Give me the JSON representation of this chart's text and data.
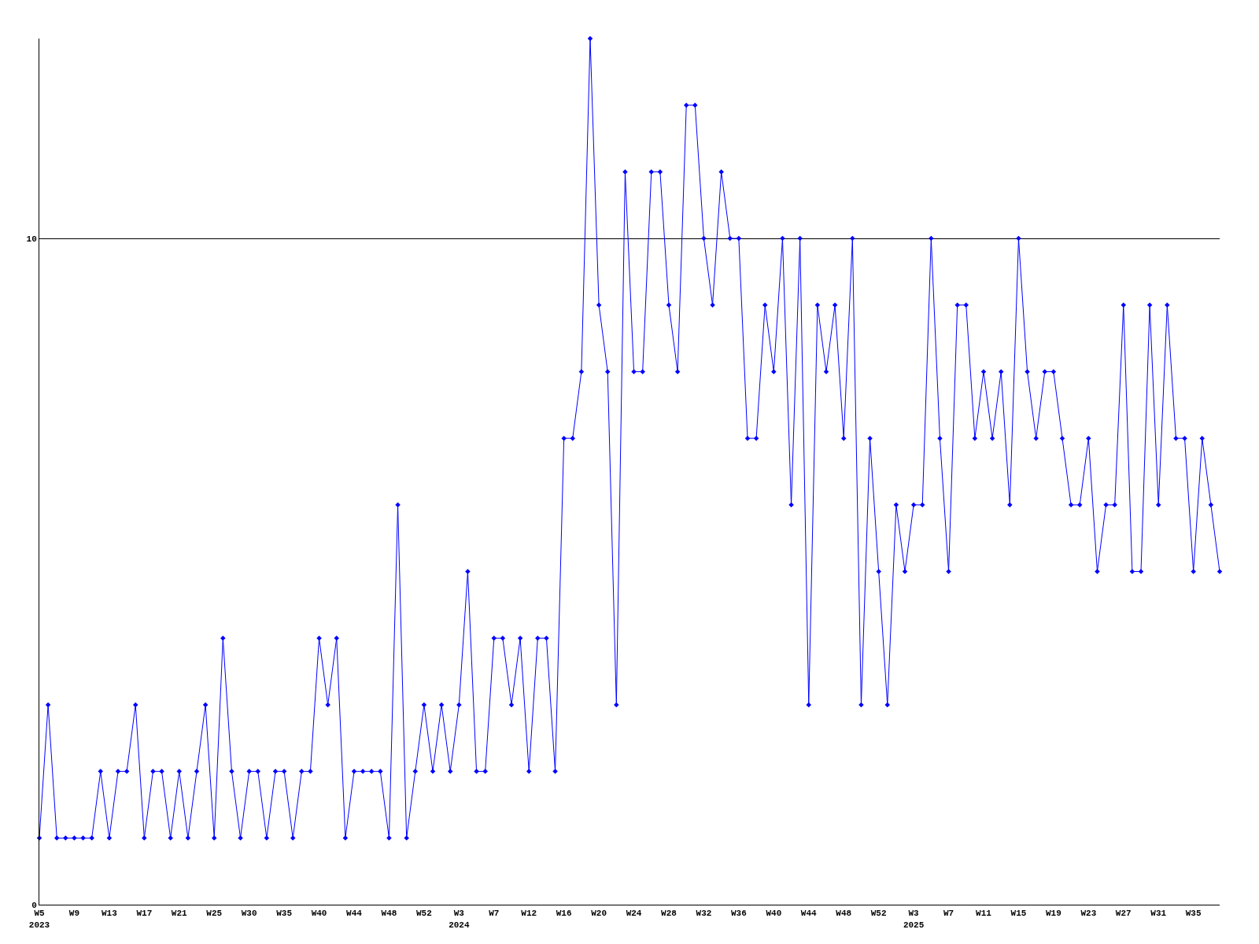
{
  "chart_data": {
    "type": "line",
    "categories": [
      "W5\n2023",
      null,
      null,
      null,
      "W9",
      null,
      null,
      null,
      "W13",
      null,
      null,
      null,
      "W17",
      null,
      null,
      null,
      "W21",
      null,
      null,
      null,
      "W25",
      null,
      null,
      null,
      "W30",
      null,
      null,
      null,
      "W35",
      null,
      null,
      null,
      "W40",
      null,
      null,
      null,
      "W44",
      null,
      null,
      null,
      "W48",
      null,
      null,
      null,
      "W52",
      null,
      null,
      null,
      "W3\n2024",
      null,
      null,
      null,
      "W7",
      null,
      null,
      null,
      "W12",
      null,
      null,
      null,
      "W16",
      null,
      null,
      null,
      "W20",
      null,
      null,
      null,
      "W24",
      null,
      null,
      null,
      "W28",
      null,
      null,
      null,
      "W32",
      null,
      null,
      null,
      "W36",
      null,
      null,
      null,
      "W40",
      null,
      null,
      null,
      "W44",
      null,
      null,
      null,
      "W48",
      null,
      null,
      null,
      "W52",
      null,
      null,
      null,
      "W3\n2025",
      null,
      null,
      null,
      "W7",
      null,
      null,
      null,
      "W11",
      null,
      null,
      null,
      "W15",
      null,
      null,
      null,
      "W19",
      null,
      null,
      null,
      "W23",
      null,
      null,
      null,
      "W27",
      null,
      null,
      null,
      "W31",
      null,
      null,
      null,
      "W35",
      null,
      null,
      null
    ],
    "series": [
      {
        "color": "#0000ff",
        "values": [
          1,
          3,
          1,
          1,
          1,
          1,
          1,
          2,
          1,
          2,
          2,
          3,
          1,
          2,
          2,
          1,
          2,
          1,
          2,
          3,
          1,
          4,
          2,
          1,
          2,
          2,
          1,
          2,
          2,
          1,
          2,
          2,
          4,
          3,
          4,
          1,
          2,
          2,
          2,
          2,
          1,
          6,
          1,
          2,
          3,
          2,
          3,
          2,
          3,
          5,
          2,
          2,
          4,
          4,
          3,
          4,
          2,
          4,
          4,
          2,
          7,
          7,
          8,
          13,
          9,
          8,
          3,
          11,
          8,
          8,
          11,
          11,
          9,
          8,
          12,
          12,
          10,
          9,
          11,
          10,
          10,
          7,
          7,
          9,
          8,
          10,
          6,
          10,
          3,
          9,
          8,
          9,
          7,
          10,
          3,
          7,
          5,
          3,
          6,
          5,
          6,
          6,
          10,
          7,
          5,
          9,
          9,
          7,
          8,
          7,
          8,
          6,
          10,
          8,
          7,
          8,
          8,
          7,
          6,
          6,
          7,
          5,
          6,
          6,
          9,
          5,
          5,
          9,
          6,
          9,
          7,
          7,
          5,
          7,
          6,
          5
        ]
      }
    ],
    "ylim": [
      0,
      13
    ],
    "yticks": [
      0,
      10
    ],
    "grid": "y",
    "marker": "diamond",
    "line_style": "solid",
    "legend": false
  }
}
